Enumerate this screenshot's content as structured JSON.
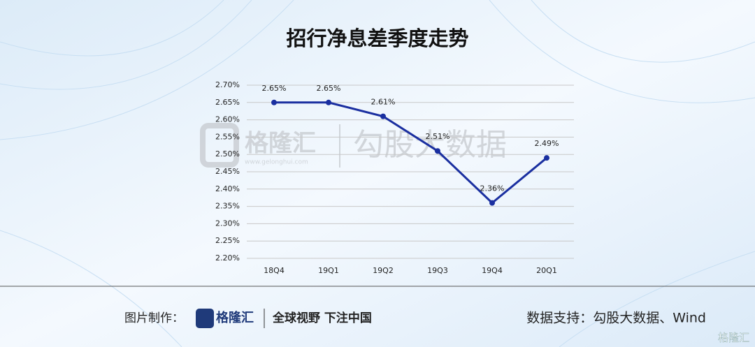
{
  "chart_data": {
    "type": "line",
    "title": "招行净息差季度走势",
    "categories": [
      "18Q4",
      "19Q1",
      "19Q2",
      "19Q3",
      "19Q4",
      "20Q1"
    ],
    "values": [
      2.65,
      2.65,
      2.61,
      2.51,
      2.36,
      2.49
    ],
    "value_labels": [
      "2.65%",
      "2.65%",
      "2.61%",
      "2.51%",
      "2.36%",
      "2.49%"
    ],
    "color": "#1a2fa0",
    "ylim": [
      2.2,
      2.7
    ],
    "yticks": [
      {
        "value": 2.2,
        "label": "2.20%"
      },
      {
        "value": 2.25,
        "label": "2.25%"
      },
      {
        "value": 2.3,
        "label": "2.30%"
      },
      {
        "value": 2.35,
        "label": "2.35%"
      },
      {
        "value": 2.4,
        "label": "2.40%"
      },
      {
        "value": 2.45,
        "label": "2.45%"
      },
      {
        "value": 2.5,
        "label": "2.50%"
      },
      {
        "value": 2.55,
        "label": "2.55%"
      },
      {
        "value": 2.6,
        "label": "2.60%"
      },
      {
        "value": 2.65,
        "label": "2.65%"
      },
      {
        "value": 2.7,
        "label": "2.70%"
      }
    ],
    "grid": true
  },
  "watermark": {
    "brand": "格隆汇",
    "site": "www.gelonghui.com",
    "partner": "勾股大数据"
  },
  "footer": {
    "made_by": "图片制作：",
    "brand": "格隆汇",
    "slogan": "全球视野 下注中国",
    "source": "数据支持：勾股大数据、Wind",
    "corner": "格隆汇"
  }
}
